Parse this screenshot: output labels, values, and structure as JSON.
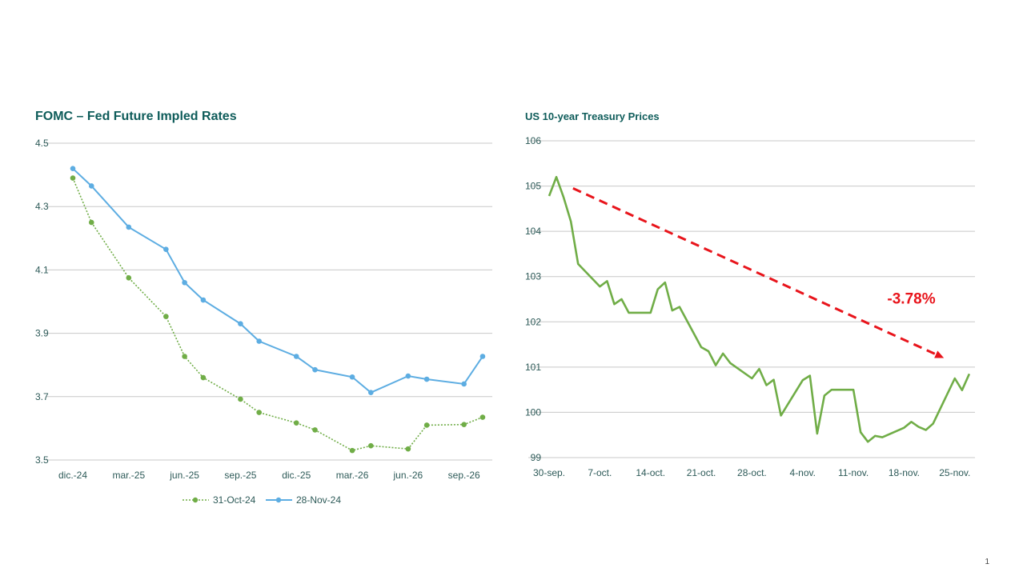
{
  "page_number": "1",
  "chart_data": [
    {
      "type": "line",
      "title": "FOMC – Fed Future Impled Rates",
      "xlabel": "",
      "ylabel": "",
      "ylim": [
        3.5,
        4.5
      ],
      "yticks": [
        "3.5",
        "3.7",
        "3.9",
        "4.1",
        "4.3",
        "4.5"
      ],
      "x_unit": "months since Dec-24",
      "xticks": [
        {
          "x": 0,
          "label": "dic.-24"
        },
        {
          "x": 3,
          "label": "mar.-25"
        },
        {
          "x": 6,
          "label": "jun.-25"
        },
        {
          "x": 9,
          "label": "sep.-25"
        },
        {
          "x": 12,
          "label": "dic.-25"
        },
        {
          "x": 15,
          "label": "mar.-26"
        },
        {
          "x": 18,
          "label": "jun.-26"
        },
        {
          "x": 21,
          "label": "sep.-26"
        }
      ],
      "x": [
        0,
        1,
        3,
        5,
        6,
        7,
        9,
        10,
        12,
        13,
        15,
        16,
        18,
        19,
        21,
        22
      ],
      "grid": true,
      "legend": "bottom",
      "series": [
        {
          "name": "31-Oct-24",
          "color": "#70ad47",
          "dash": true,
          "values": [
            4.39,
            4.25,
            4.075,
            3.953,
            3.827,
            3.76,
            3.692,
            3.65,
            3.617,
            3.595,
            3.53,
            3.545,
            3.535,
            3.61,
            3.612,
            3.635
          ]
        },
        {
          "name": "28-Nov-24",
          "color": "#5dade2",
          "dash": false,
          "values": [
            4.42,
            4.365,
            4.235,
            4.165,
            4.06,
            4.005,
            3.93,
            3.875,
            3.827,
            3.785,
            3.762,
            3.713,
            3.765,
            3.755,
            3.74,
            3.827
          ]
        }
      ]
    },
    {
      "type": "line",
      "title": "US 10-year Treasury Prices",
      "xlabel": "",
      "ylabel": "",
      "ylim": [
        99,
        106
      ],
      "yticks": [
        "99",
        "100",
        "101",
        "102",
        "103",
        "104",
        "105",
        "106"
      ],
      "x_unit": "days since 30-sep",
      "xlim": [
        -3,
        59
      ],
      "xticks": [
        {
          "x": 0,
          "label": "30-sep."
        },
        {
          "x": 7,
          "label": "7-oct."
        },
        {
          "x": 14,
          "label": "14-oct."
        },
        {
          "x": 21,
          "label": "21-oct."
        },
        {
          "x": 28,
          "label": "28-oct."
        },
        {
          "x": 35,
          "label": "4-nov."
        },
        {
          "x": 42,
          "label": "11-nov."
        },
        {
          "x": 49,
          "label": "18-nov."
        },
        {
          "x": 56,
          "label": "25-nov."
        }
      ],
      "grid": true,
      "series": [
        {
          "name": "US 10Y price",
          "color": "#70ad47",
          "x": [
            0,
            1,
            2,
            3,
            4,
            7,
            8,
            9,
            10,
            11,
            14,
            15,
            16,
            17,
            18,
            21,
            22,
            23,
            24,
            25,
            28,
            29,
            30,
            31,
            32,
            35,
            36,
            37,
            38,
            39,
            42,
            43,
            44,
            45,
            46,
            49,
            50,
            51,
            52,
            53,
            56,
            57,
            58
          ],
          "values": [
            104.78,
            105.2,
            104.75,
            104.22,
            103.28,
            102.78,
            102.9,
            102.39,
            102.5,
            102.2,
            102.2,
            102.72,
            102.87,
            102.25,
            102.33,
            101.44,
            101.35,
            101.04,
            101.3,
            101.09,
            100.75,
            100.96,
            100.6,
            100.72,
            99.93,
            100.71,
            100.81,
            99.53,
            100.37,
            100.5,
            100.5,
            99.56,
            99.35,
            99.48,
            99.45,
            99.66,
            99.79,
            99.68,
            99.61,
            99.75,
            100.75,
            100.49,
            100.85
          ]
        }
      ],
      "annotations": [
        {
          "type": "trend-arrow",
          "color": "#e8141b",
          "from": [
            3.3,
            104.95
          ],
          "to": [
            54.5,
            101.2
          ]
        },
        {
          "type": "text",
          "text": "-3.78%",
          "color": "#e8141b",
          "at": [
            50,
            102.4
          ]
        }
      ]
    }
  ]
}
